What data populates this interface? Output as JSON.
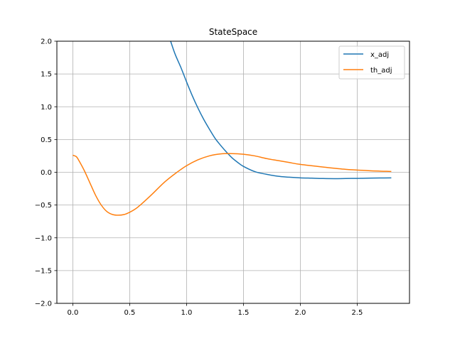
{
  "chart_data": {
    "type": "line",
    "title": "StateSpace",
    "xlabel": "",
    "ylabel": "",
    "xlim": [
      -0.14,
      2.96
    ],
    "ylim": [
      -2.0,
      2.0
    ],
    "x_ticks": [
      0.0,
      0.5,
      1.0,
      1.5,
      2.0,
      2.5
    ],
    "x_tick_labels": [
      "0.0",
      "0.5",
      "1.0",
      "1.5",
      "2.0",
      "2.5"
    ],
    "y_ticks": [
      -2.0,
      -1.5,
      -1.0,
      -0.5,
      0.0,
      0.5,
      1.0,
      1.5,
      2.0
    ],
    "y_tick_labels": [
      "−2.0",
      "−1.5",
      "−1.0",
      "−0.5",
      "0.0",
      "0.5",
      "1.0",
      "1.5",
      "2.0"
    ],
    "grid": true,
    "legend_position": "top-right",
    "series": [
      {
        "name": "x_adj",
        "color": "#1f77b4",
        "x": [
          0.86,
          0.9,
          0.95,
          1.0,
          1.05,
          1.1,
          1.15,
          1.2,
          1.25,
          1.3,
          1.35,
          1.4,
          1.45,
          1.5,
          1.6,
          1.7,
          1.8,
          1.9,
          2.0,
          2.1,
          2.2,
          2.3,
          2.4,
          2.5,
          2.6,
          2.7,
          2.8
        ],
        "y": [
          2.0,
          1.8,
          1.6,
          1.38,
          1.17,
          0.98,
          0.81,
          0.66,
          0.52,
          0.41,
          0.31,
          0.22,
          0.15,
          0.09,
          0.01,
          -0.03,
          -0.06,
          -0.075,
          -0.085,
          -0.09,
          -0.095,
          -0.097,
          -0.095,
          -0.093,
          -0.09,
          -0.087,
          -0.085
        ]
      },
      {
        "name": "th_adj",
        "color": "#ff7f0e",
        "x": [
          0.0,
          0.03,
          0.05,
          0.1,
          0.15,
          0.2,
          0.25,
          0.3,
          0.35,
          0.4,
          0.45,
          0.5,
          0.55,
          0.6,
          0.7,
          0.8,
          0.9,
          1.0,
          1.1,
          1.2,
          1.3,
          1.4,
          1.5,
          1.6,
          1.7,
          1.8,
          1.9,
          2.0,
          2.2,
          2.4,
          2.6,
          2.8
        ],
        "y": [
          0.26,
          0.24,
          0.19,
          0.03,
          -0.16,
          -0.35,
          -0.5,
          -0.6,
          -0.645,
          -0.655,
          -0.645,
          -0.61,
          -0.56,
          -0.49,
          -0.33,
          -0.16,
          -0.02,
          0.1,
          0.19,
          0.25,
          0.28,
          0.285,
          0.275,
          0.25,
          0.21,
          0.18,
          0.15,
          0.12,
          0.08,
          0.045,
          0.025,
          0.012
        ]
      }
    ]
  }
}
